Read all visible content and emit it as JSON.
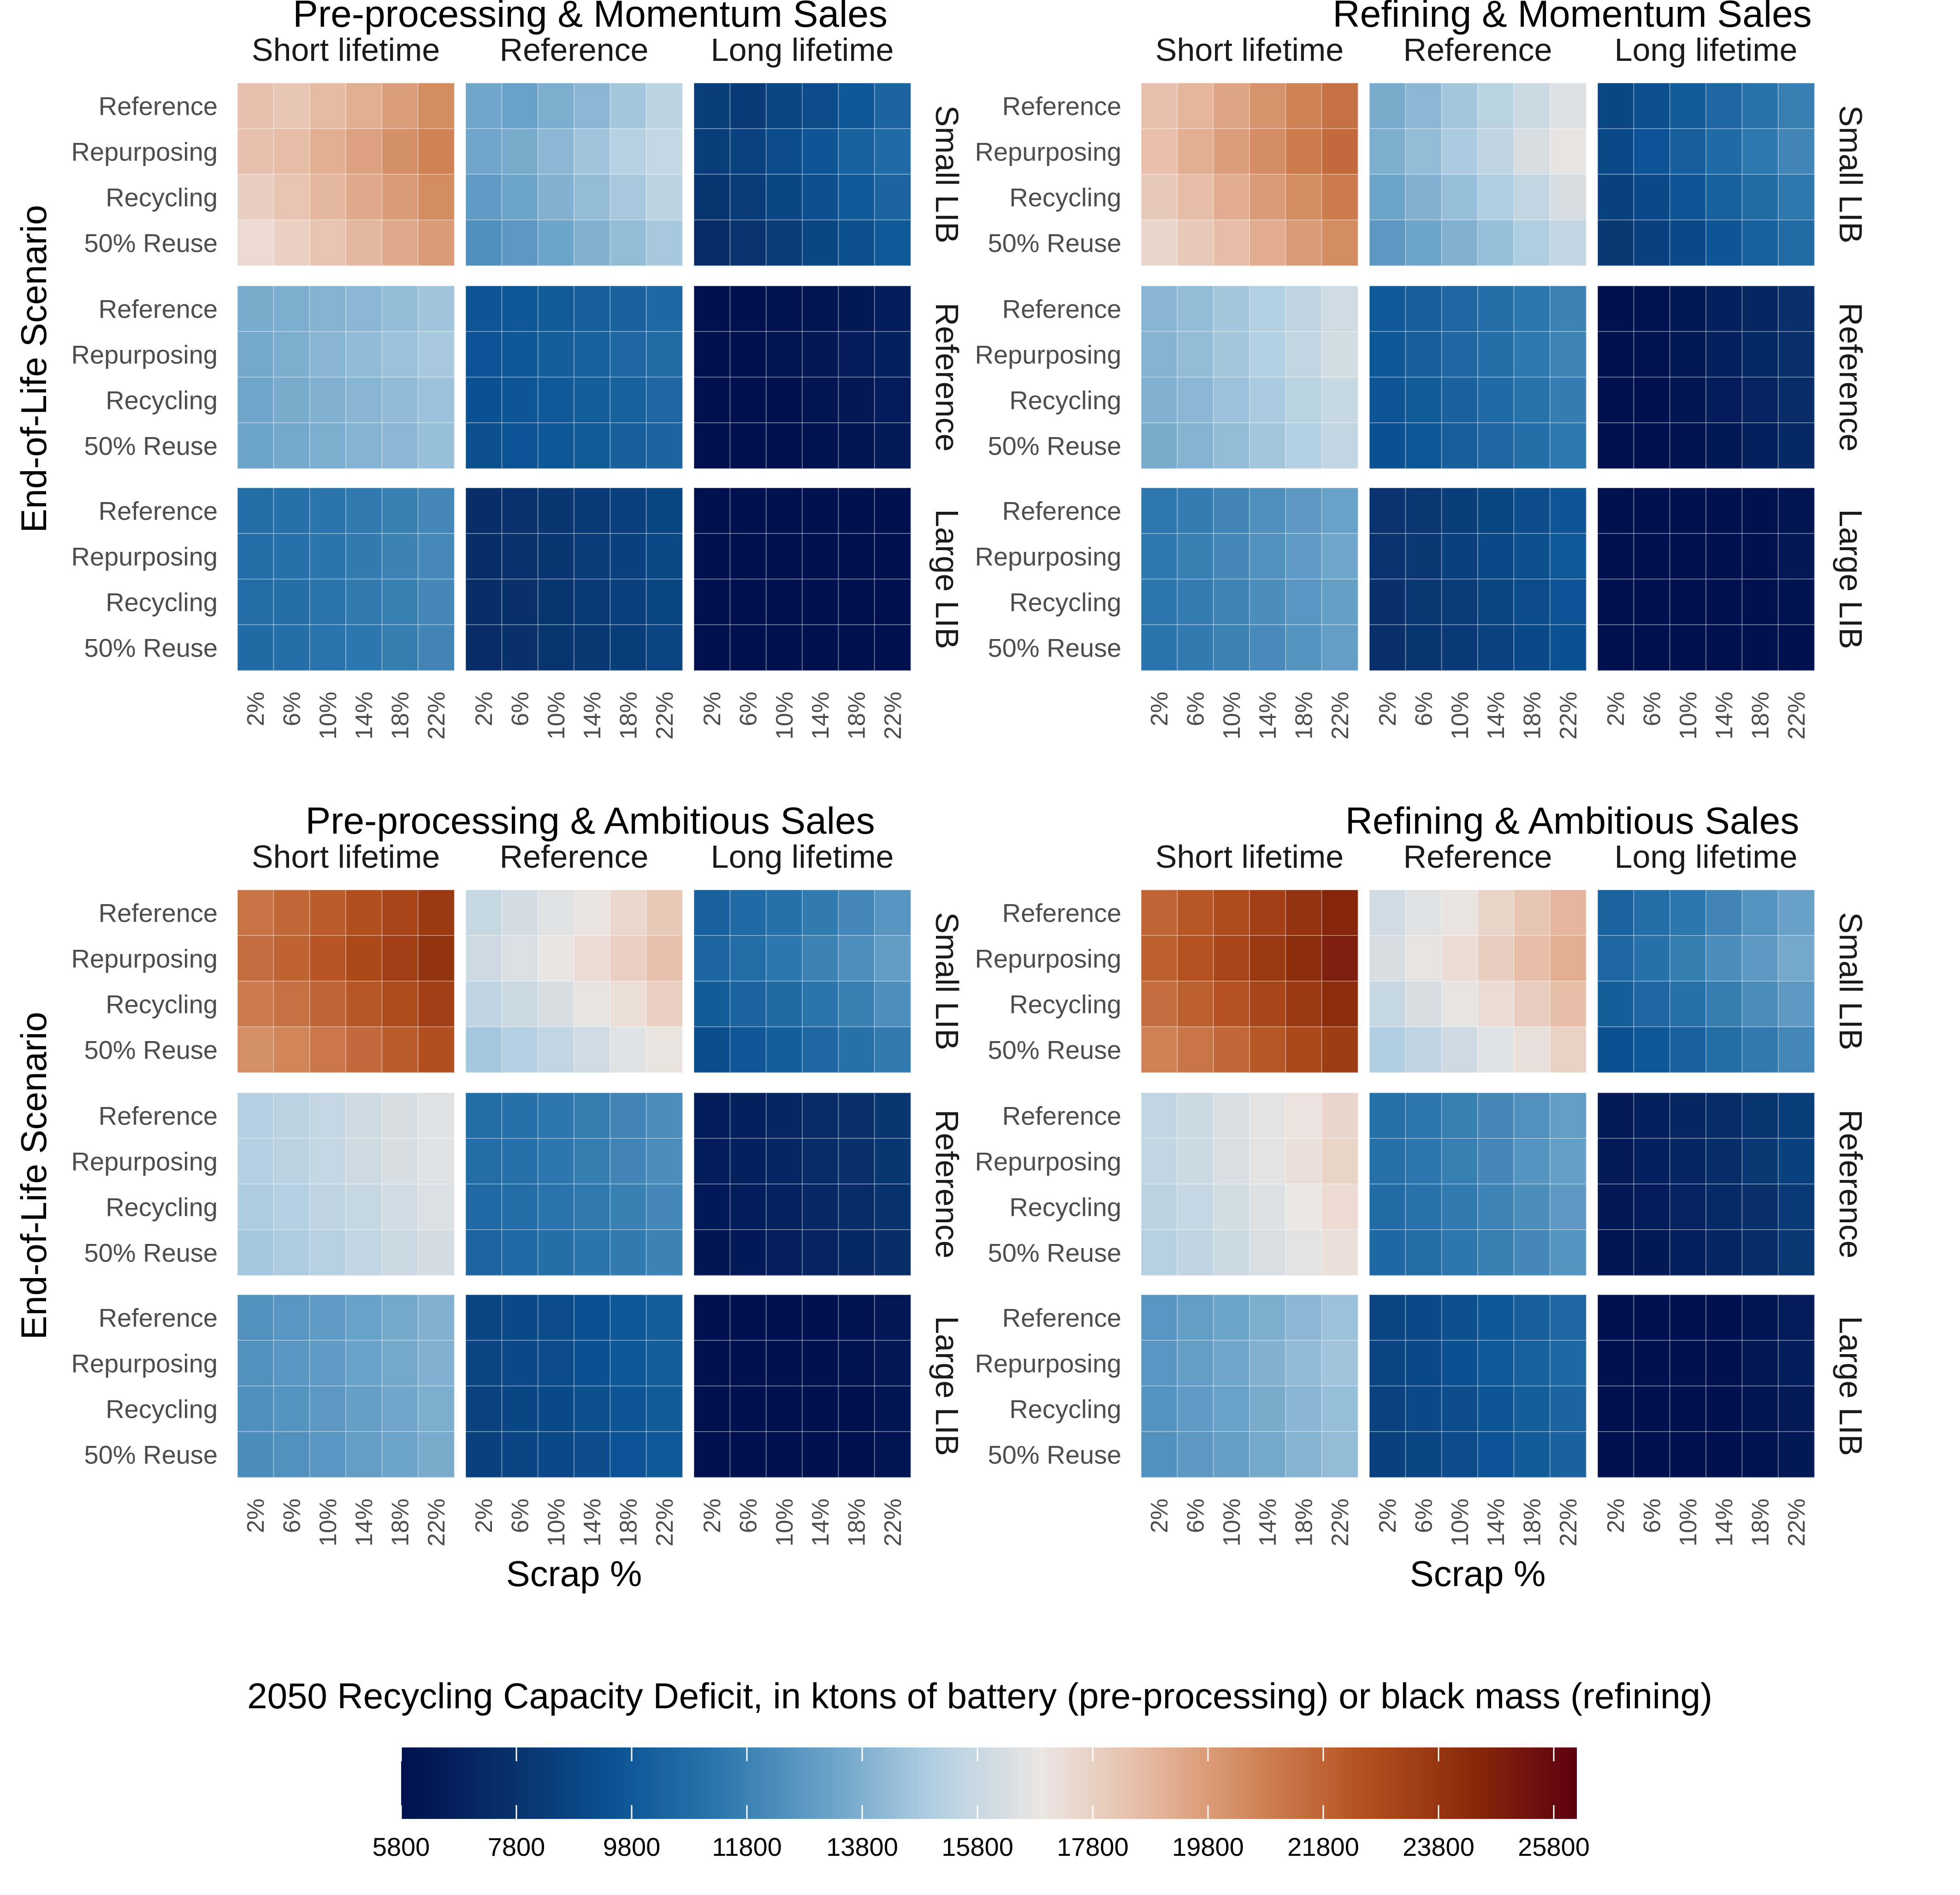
{
  "chart_data": {
    "type": "heatmap",
    "x_label": "Scrap %",
    "y_label": "End-of-Life Scenario",
    "x_tick_labels": [
      "2%",
      "6%",
      "10%",
      "14%",
      "18%",
      "22%"
    ],
    "row_labels": [
      "Reference",
      "Repurposing",
      "Recycling",
      "50% Reuse"
    ],
    "column_facets": [
      "Short lifetime",
      "Reference",
      "Long lifetime"
    ],
    "row_facets": [
      "Small LIB",
      "Reference",
      "Large LIB"
    ],
    "colorbar": {
      "title": "2050 Recycling Capacity Deficit, in ktons of battery (pre-processing) or black mass (refining)",
      "min": 5800,
      "max": 26200,
      "ticks": [
        5800,
        7800,
        9800,
        11800,
        13800,
        15800,
        17800,
        19800,
        21800,
        23800,
        25800
      ],
      "tick_labels": [
        "5800",
        "7800",
        "9800",
        "11800",
        "13800",
        "15800",
        "17800",
        "19800",
        "21800",
        "23800",
        "25800"
      ],
      "colors": [
        "#00104e",
        "#08306b",
        "#0b5394",
        "#2c77ae",
        "#6aa2c8",
        "#b2cfe2",
        "#ebe6e3",
        "#e6b8a0",
        "#d08457",
        "#b4501f",
        "#8a2a0a",
        "#5c0010"
      ]
    },
    "panels": [
      {
        "title": "Pre-processing & Momentum Sales",
        "base": [
          [
            [
              10900,
              10700,
              11200,
              11600,
              12200,
              12900
            ],
            [
              10900,
              11100,
              11600,
              12100,
              12700,
              13200
            ],
            [
              10400,
              10800,
              11300,
              11800,
              12300,
              12900
            ],
            [
              9900,
              10300,
              10800,
              11300,
              11800,
              12300
            ]
          ],
          [
            [
              7600,
              7700,
              7900,
              8100,
              8300,
              8600
            ],
            [
              7500,
              7700,
              8000,
              8200,
              8500,
              8800
            ],
            [
              7400,
              7600,
              7800,
              8000,
              8200,
              8500
            ],
            [
              7300,
              7500,
              7700,
              7900,
              8100,
              8400
            ]
          ],
          [
            [
              5900,
              6100,
              6300,
              6500,
              6800,
              7100
            ],
            [
              5900,
              6100,
              6300,
              6600,
              6900,
              7200
            ],
            [
              5900,
              6000,
              6200,
              6500,
              6800,
              7100
            ],
            [
              5800,
              6000,
              6200,
              6400,
              6700,
              7000
            ]
          ]
        ],
        "step": [
          5000,
          4000,
          3300
        ]
      },
      {
        "title": "Refining & Momentum Sales",
        "base": [
          [
            [
              11200,
              11700,
              12300,
              12900,
              13500,
              14100
            ],
            [
              11300,
              11900,
              12500,
              13100,
              13800,
              14400
            ],
            [
              10900,
              11400,
              12000,
              12600,
              13200,
              13800
            ],
            [
              10400,
              10900,
              11400,
              12000,
              12600,
              13200
            ]
          ],
          [
            [
              7700,
              8000,
              8400,
              8800,
              9200,
              9700
            ],
            [
              7600,
              8000,
              8400,
              8800,
              9300,
              9800
            ],
            [
              7500,
              7800,
              8200,
              8600,
              9000,
              9500
            ],
            [
              7300,
              7600,
              8000,
              8400,
              8800,
              9300
            ]
          ],
          [
            [
              6000,
              6200,
              6600,
              7000,
              7400,
              7800
            ],
            [
              6000,
              6300,
              6700,
              7100,
              7500,
              8000
            ],
            [
              5900,
              6200,
              6500,
              6900,
              7300,
              7700
            ],
            [
              5800,
              6100,
              6400,
              6800,
              7200,
              7600
            ]
          ]
        ],
        "step": [
          4800,
          4200,
          3600
        ]
      },
      {
        "title": "Pre-processing & Ambitious Sales",
        "base": [
          [
            [
              13000,
              13400,
              13800,
              14300,
              14800,
              15400
            ],
            [
              13200,
              13600,
              14100,
              14600,
              15100,
              15700
            ],
            [
              12700,
              13100,
              13500,
              14000,
              14500,
              15100
            ],
            [
              12000,
              12400,
              12800,
              13300,
              13800,
              14300
            ]
          ],
          [
            [
              8700,
              8900,
              9200,
              9500,
              9800,
              10100
            ],
            [
              8700,
              8900,
              9200,
              9500,
              9800,
              10100
            ],
            [
              8500,
              8700,
              9000,
              9300,
              9600,
              9900
            ],
            [
              8300,
              8500,
              8800,
              9100,
              9400,
              9700
            ]
          ],
          [
            [
              6800,
              7000,
              7200,
              7500,
              7800,
              8100
            ],
            [
              6800,
              7000,
              7200,
              7500,
              7800,
              8100
            ],
            [
              6700,
              6900,
              7100,
              7400,
              7700,
              8000
            ],
            [
              6600,
              6800,
              7000,
              7300,
              7600,
              7900
            ]
          ]
        ],
        "step": [
          5500,
          4300,
          3800
        ]
      },
      {
        "title": "Refining & Ambitious Sales",
        "base": [
          [
            [
              13200,
              13700,
              14200,
              14800,
              15400,
              16000
            ],
            [
              13400,
              13900,
              14500,
              15100,
              15700,
              16300
            ],
            [
              12900,
              13400,
              13900,
              14500,
              15100,
              15700
            ],
            [
              12200,
              12600,
              13100,
              13700,
              14300,
              14900
            ]
          ],
          [
            [
              8700,
              9000,
              9400,
              9800,
              10200,
              10700
            ],
            [
              8700,
              9000,
              9400,
              9800,
              10300,
              10800
            ],
            [
              8500,
              8800,
              9200,
              9600,
              10000,
              10500
            ],
            [
              8300,
              8600,
              9000,
              9400,
              9800,
              10300
            ]
          ],
          [
            [
              6700,
              7000,
              7300,
              7700,
              8100,
              8500
            ],
            [
              6700,
              7000,
              7400,
              7800,
              8200,
              8600
            ],
            [
              6600,
              6900,
              7200,
              7600,
              8000,
              8400
            ],
            [
              6500,
              6800,
              7100,
              7500,
              7900,
              8300
            ]
          ]
        ],
        "step": [
          5700,
          4600,
          4000
        ]
      }
    ]
  }
}
